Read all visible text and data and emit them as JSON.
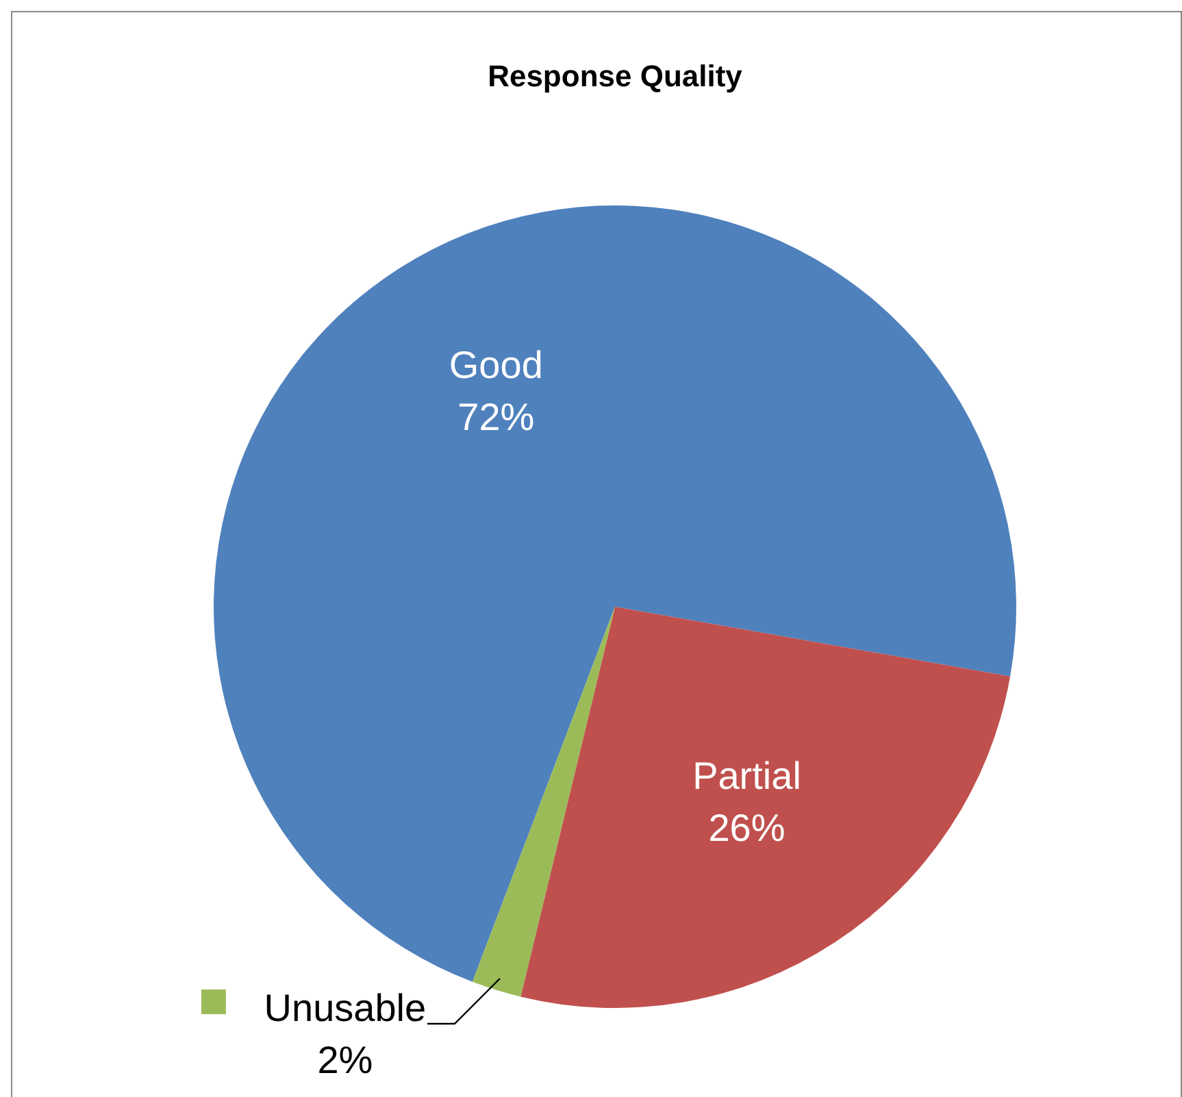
{
  "chart_data": {
    "type": "pie",
    "title": "Response Quality",
    "categories": [
      "Good",
      "Partial",
      "Unusable"
    ],
    "values": [
      72,
      26,
      2
    ],
    "colors": [
      "#4f81bd",
      "#c0504d",
      "#9bbb59"
    ],
    "value_labels": [
      "72%",
      "26%",
      "2%"
    ]
  }
}
